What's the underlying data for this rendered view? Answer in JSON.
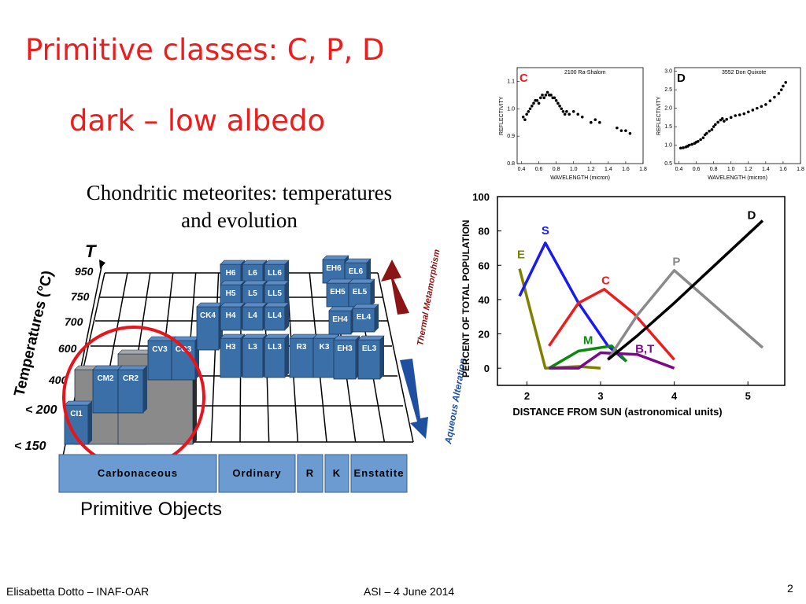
{
  "slide": {
    "title_line1": "Primitive classes:  C, P, D",
    "title_line2": "dark – low albedo",
    "subtitle": "Chondritic meteorites: temperatures and evolution",
    "caption": "Primitive Objects",
    "footer_left": "Elisabetta Dotto – INAF-OAR",
    "footer_center": "ASI – 4 June 2014",
    "page_number": "2"
  },
  "meteorite_diagram": {
    "y_axis_label": "Temperatures (°C)",
    "y_axis_symbol": "T",
    "temperature_ticks": [
      "950",
      "750",
      "700",
      "600",
      "400",
      "< 200",
      "< 150"
    ],
    "groups": [
      "Carbonaceous",
      "Ordinary",
      "R",
      "K",
      "Enstatite"
    ],
    "arrow_up_label": "Thermal Metamorphism",
    "arrow_down_label": "Aqueous Alteration",
    "blocks": [
      "CI1",
      "CM2",
      "CR2",
      "CV3",
      "CO3",
      "CK4",
      "H6",
      "L6",
      "LL6",
      "H5",
      "L5",
      "LL5",
      "H4",
      "L4",
      "LL4",
      "H3",
      "L3",
      "LL3",
      "R3",
      "K3",
      "EH6",
      "EL6",
      "EH5",
      "EL5",
      "EH4",
      "EL4",
      "EH3",
      "EL3"
    ],
    "colors": {
      "block": "#3a6fa8",
      "block_dark": "#23466f",
      "gray": "#8a8a8a",
      "circle": "#e8141c",
      "arrow_up": "#8b1414",
      "arrow_down": "#1f4fa0",
      "group_bar": "#6b9bd0"
    }
  },
  "chart_data": [
    {
      "type": "scatter",
      "title": "2100 Ra-Shalom",
      "panel_letter": "C",
      "xlabel": "WAVELENGTH (micron)",
      "ylabel": "REFLECTIVITY",
      "xlim": [
        0.35,
        1.8
      ],
      "ylim": [
        0.8,
        1.15
      ],
      "xticks": [
        "0.4",
        "0.6",
        "0.8",
        "1.0",
        "1.2",
        "1.4",
        "1.6",
        "1.8"
      ],
      "yticks": [
        "0.8",
        "0.9",
        "1.0",
        "1.1"
      ],
      "x": [
        0.42,
        0.44,
        0.46,
        0.48,
        0.5,
        0.52,
        0.54,
        0.56,
        0.58,
        0.6,
        0.62,
        0.64,
        0.66,
        0.68,
        0.7,
        0.72,
        0.74,
        0.76,
        0.78,
        0.8,
        0.82,
        0.84,
        0.86,
        0.88,
        0.9,
        0.92,
        0.95,
        1.0,
        1.05,
        1.1,
        1.2,
        1.25,
        1.3,
        1.5,
        1.55,
        1.6,
        1.65
      ],
      "y": [
        0.97,
        0.96,
        0.98,
        0.99,
        1.0,
        1.01,
        1.02,
        1.03,
        1.03,
        1.02,
        1.04,
        1.05,
        1.04,
        1.05,
        1.06,
        1.05,
        1.05,
        1.04,
        1.04,
        1.03,
        1.02,
        1.01,
        1.0,
        0.99,
        0.98,
        0.99,
        0.98,
        0.99,
        0.98,
        0.97,
        0.95,
        0.96,
        0.95,
        0.93,
        0.92,
        0.92,
        0.91
      ]
    },
    {
      "type": "scatter",
      "title": "3552 Don Quixote",
      "panel_letter": "D",
      "xlabel": "WAVELENGTH (micron)",
      "ylabel": "REFLECTIVITY",
      "xlim": [
        0.35,
        1.8
      ],
      "ylim": [
        0.5,
        3.1
      ],
      "xticks": [
        "0.4",
        "0.6",
        "0.8",
        "1.0",
        "1.2",
        "1.4",
        "1.6",
        "1.8"
      ],
      "yticks": [
        "0.5",
        "1.0",
        "1.5",
        "2.0",
        "2.5",
        "3.0"
      ],
      "x": [
        0.42,
        0.45,
        0.48,
        0.5,
        0.52,
        0.55,
        0.58,
        0.6,
        0.62,
        0.65,
        0.68,
        0.7,
        0.72,
        0.75,
        0.78,
        0.8,
        0.82,
        0.85,
        0.88,
        0.9,
        0.92,
        0.95,
        1.0,
        1.05,
        1.1,
        1.15,
        1.2,
        1.25,
        1.3,
        1.35,
        1.4,
        1.45,
        1.5,
        1.55,
        1.58,
        1.6,
        1.63
      ],
      "y": [
        0.92,
        0.93,
        0.95,
        0.97,
        1.0,
        1.02,
        1.05,
        1.08,
        1.1,
        1.15,
        1.2,
        1.28,
        1.32,
        1.38,
        1.42,
        1.5,
        1.56,
        1.62,
        1.68,
        1.72,
        1.65,
        1.7,
        1.75,
        1.8,
        1.82,
        1.85,
        1.9,
        1.95,
        2.0,
        2.05,
        2.1,
        2.2,
        2.3,
        2.4,
        2.5,
        2.6,
        2.7
      ]
    },
    {
      "type": "line",
      "xlabel": "DISTANCE FROM SUN (astronomical units)",
      "ylabel": "PERCENT OF TOTAL POPULATION",
      "xlim": [
        1.6,
        5.5
      ],
      "ylim": [
        -10,
        100
      ],
      "xticks": [
        "2",
        "3",
        "4",
        "5"
      ],
      "yticks": [
        "0",
        "20",
        "40",
        "60",
        "80",
        "100"
      ],
      "series": [
        {
          "name": "E",
          "color": "#808000",
          "x": [
            1.9,
            2.25,
            2.7,
            3.0
          ],
          "y": [
            58,
            0,
            1,
            0
          ]
        },
        {
          "name": "S",
          "color": "#1a1aee",
          "x": [
            1.9,
            2.25,
            2.7,
            3.1,
            3.35
          ],
          "y": [
            42,
            73,
            38,
            13,
            4
          ]
        },
        {
          "name": "C",
          "color": "#ee1c1c",
          "x": [
            2.3,
            2.7,
            3.05,
            3.45,
            4.0
          ],
          "y": [
            13,
            38,
            46,
            32,
            5
          ]
        },
        {
          "name": "M",
          "color": "#0a8a0a",
          "x": [
            2.3,
            2.7,
            3.15,
            3.35
          ],
          "y": [
            0,
            10,
            13,
            4
          ]
        },
        {
          "name": "B,T",
          "color": "#7a0a8a",
          "x": [
            2.3,
            2.7,
            3.0,
            3.5,
            4.0
          ],
          "y": [
            0,
            0,
            9,
            8,
            0
          ]
        },
        {
          "name": "P",
          "color": "#8a8a8a",
          "x": [
            3.1,
            3.5,
            4.0,
            5.2
          ],
          "y": [
            5,
            31,
            57,
            12
          ]
        },
        {
          "name": "D",
          "color": "#000000",
          "x": [
            3.1,
            3.5,
            4.0,
            5.2
          ],
          "y": [
            5,
            19,
            38,
            86
          ]
        }
      ]
    }
  ]
}
